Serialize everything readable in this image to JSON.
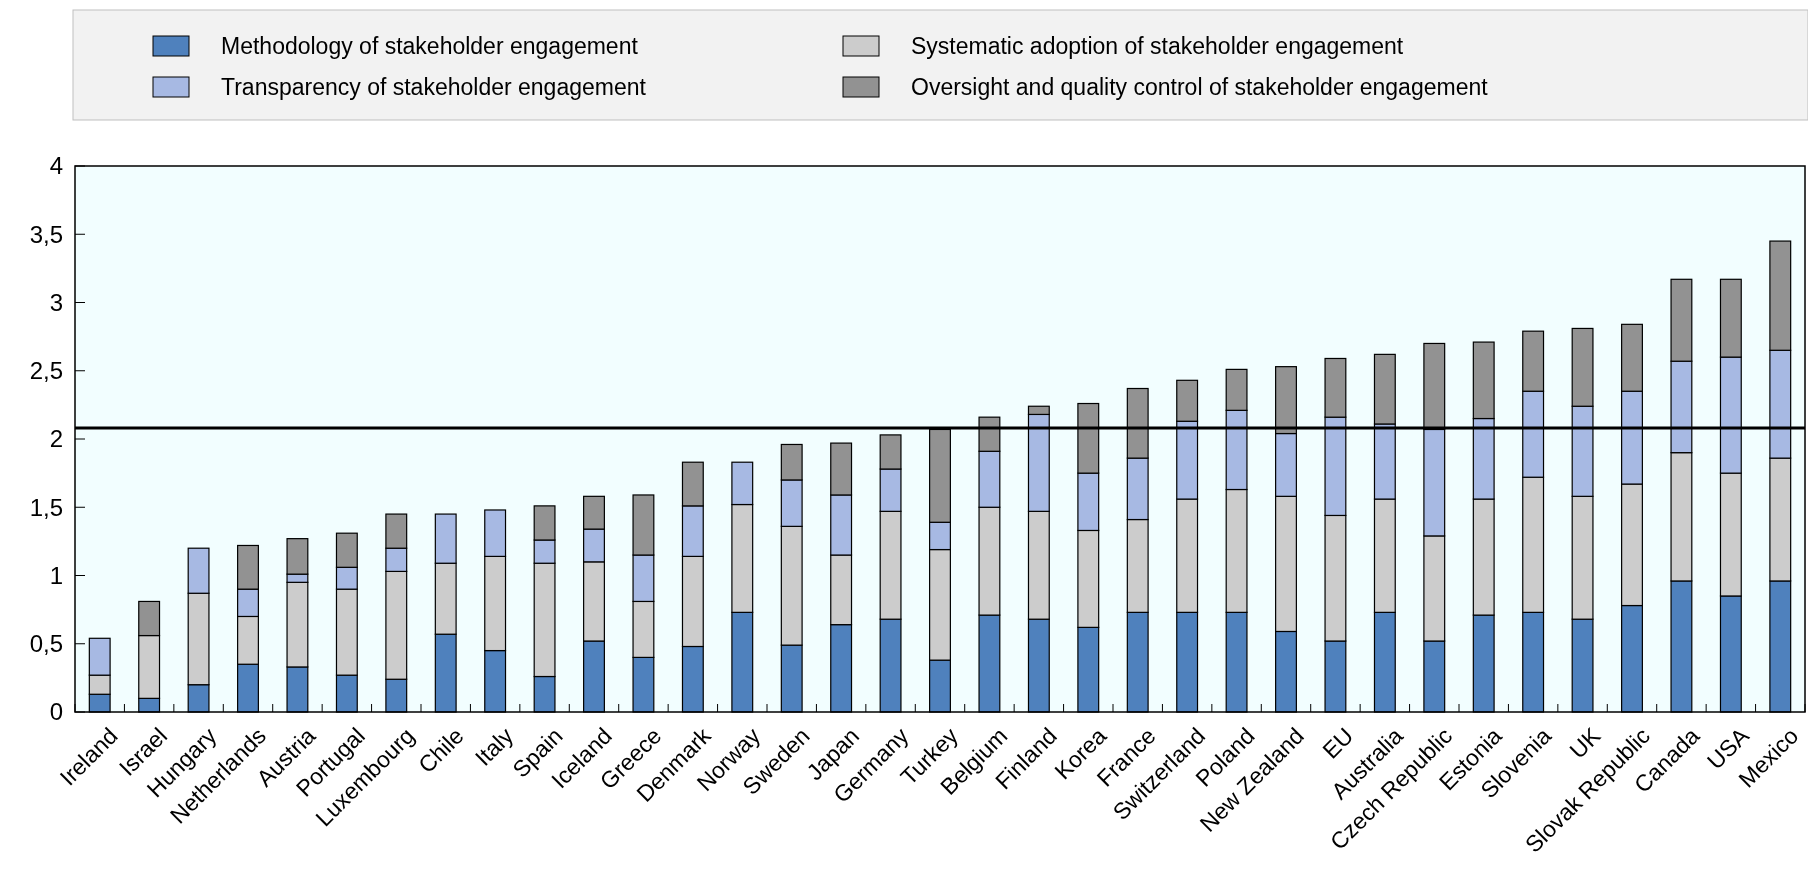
{
  "chart_data": {
    "type": "bar",
    "stacked": true,
    "categories": [
      "Ireland",
      "Israel",
      "Hungary",
      "Netherlands",
      "Austria",
      "Portugal",
      "Luxembourg",
      "Chile",
      "Italy",
      "Spain",
      "Iceland",
      "Greece",
      "Denmark",
      "Norway",
      "Sweden",
      "Japan",
      "Germany",
      "Turkey",
      "Belgium",
      "Finland",
      "Korea",
      "France",
      "Switzerland",
      "Poland",
      "New Zealand",
      "EU",
      "Australia",
      "Czech Republic",
      "Estonia",
      "Slovenia",
      "UK",
      "Slovak Republic",
      "Canada",
      "USA",
      "Mexico"
    ],
    "series": [
      {
        "name": "Methodology of stakeholder engagement",
        "color": "#4f81bd",
        "values": [
          0.13,
          0.1,
          0.2,
          0.35,
          0.33,
          0.27,
          0.24,
          0.57,
          0.45,
          0.26,
          0.52,
          0.4,
          0.48,
          0.73,
          0.49,
          0.64,
          0.68,
          0.38,
          0.71,
          0.68,
          0.62,
          0.73,
          0.73,
          0.73,
          0.59,
          0.52,
          0.73,
          0.52,
          0.71,
          0.73,
          0.68,
          0.78,
          0.96,
          0.85,
          0.96
        ]
      },
      {
        "name": "Systematic adoption of stakeholder engagement",
        "color": "#cccccc",
        "values": [
          0.14,
          0.46,
          0.67,
          0.35,
          0.62,
          0.63,
          0.79,
          0.52,
          0.69,
          0.83,
          0.58,
          0.41,
          0.66,
          0.79,
          0.87,
          0.51,
          0.79,
          0.81,
          0.79,
          0.79,
          0.71,
          0.68,
          0.83,
          0.9,
          0.99,
          0.92,
          0.83,
          0.77,
          0.85,
          0.99,
          0.9,
          0.89,
          0.94,
          0.9,
          0.9
        ]
      },
      {
        "name": "Transparency of stakeholder engagement",
        "color": "#a7b9e3",
        "values": [
          0.27,
          0,
          0.33,
          0.2,
          0.06,
          0.16,
          0.17,
          0.36,
          0.34,
          0.17,
          0.24,
          0.34,
          0.37,
          0.31,
          0.34,
          0.44,
          0.31,
          0.2,
          0.41,
          0.71,
          0.42,
          0.45,
          0.57,
          0.58,
          0.46,
          0.72,
          0.55,
          0.78,
          0.59,
          0.63,
          0.66,
          0.68,
          0.67,
          0.85,
          0.79
        ]
      },
      {
        "name": "Oversight and quality control of stakeholder engagement",
        "color": "#929292",
        "values": [
          0,
          0.25,
          0,
          0.32,
          0.26,
          0.25,
          0.25,
          0,
          0,
          0.25,
          0.24,
          0.44,
          0.32,
          0,
          0.26,
          0.38,
          0.25,
          0.68,
          0.25,
          0.06,
          0.51,
          0.51,
          0.3,
          0.3,
          0.49,
          0.43,
          0.51,
          0.63,
          0.56,
          0.44,
          0.57,
          0.49,
          0.6,
          0.57,
          0.8
        ]
      }
    ],
    "ylim": [
      0,
      4
    ],
    "yticks": [
      0,
      {
        "value": 0.5,
        "label": "0,5"
      },
      1,
      {
        "value": 1.5,
        "label": "1,5"
      },
      2,
      {
        "value": 2.5,
        "label": "2,5"
      },
      3,
      {
        "value": 3.5,
        "label": "3,5"
      },
      4
    ],
    "ref_lines": [
      {
        "axis": "y",
        "value": 2.08,
        "color": "#000000"
      }
    ],
    "legend": "top",
    "grid": false
  }
}
